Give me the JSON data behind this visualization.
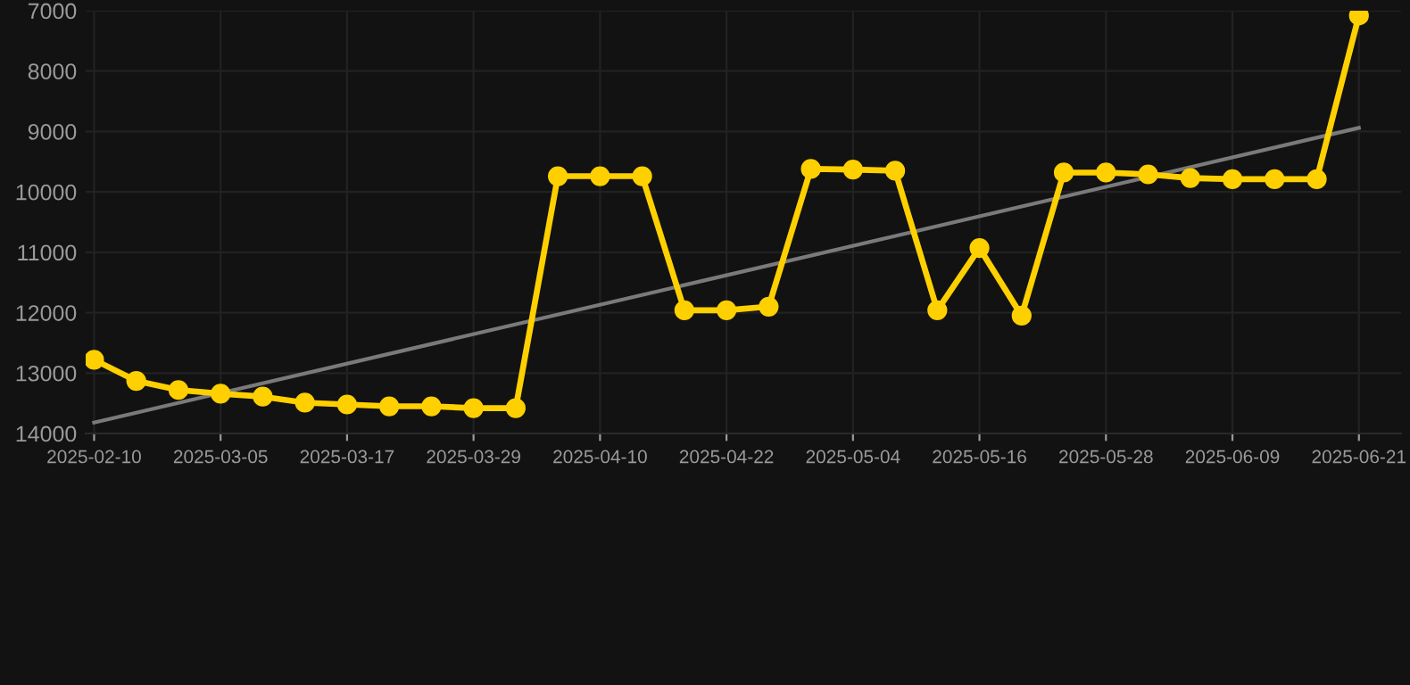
{
  "chart_data": {
    "type": "line",
    "categories": [
      "2025-02-10",
      null,
      null,
      "2025-03-05",
      null,
      null,
      "2025-03-17",
      null,
      null,
      "2025-03-29",
      null,
      null,
      "2025-04-10",
      null,
      null,
      "2025-04-22",
      null,
      null,
      "2025-05-04",
      null,
      null,
      "2025-05-16",
      null,
      null,
      "2025-05-28",
      null,
      null,
      "2025-06-09",
      null,
      null,
      "2025-06-21"
    ],
    "series": [
      {
        "color": "#ffd000",
        "marker": "circle",
        "values": [
          12780,
          13130,
          13280,
          13340,
          13390,
          13490,
          13520,
          13550,
          13550,
          13580,
          13580,
          9740,
          9740,
          9740,
          11960,
          11960,
          11900,
          9620,
          9630,
          9650,
          11960,
          10930,
          12050,
          9680,
          9680,
          9710,
          9770,
          9790,
          9790,
          9790,
          7080
        ]
      },
      {
        "type": "line",
        "color": "#7a7a7a",
        "marker": "none",
        "values": [
          13820,
          null,
          null,
          null,
          null,
          null,
          null,
          null,
          null,
          null,
          null,
          null,
          null,
          null,
          null,
          null,
          null,
          null,
          null,
          null,
          null,
          null,
          null,
          null,
          null,
          null,
          null,
          null,
          null,
          null,
          8940
        ]
      }
    ],
    "ylim": [
      14000,
      7000
    ],
    "yticks": [
      7000,
      8000,
      9000,
      10000,
      11000,
      12000,
      13000,
      14000
    ],
    "grid": true,
    "line_style": "solid"
  }
}
